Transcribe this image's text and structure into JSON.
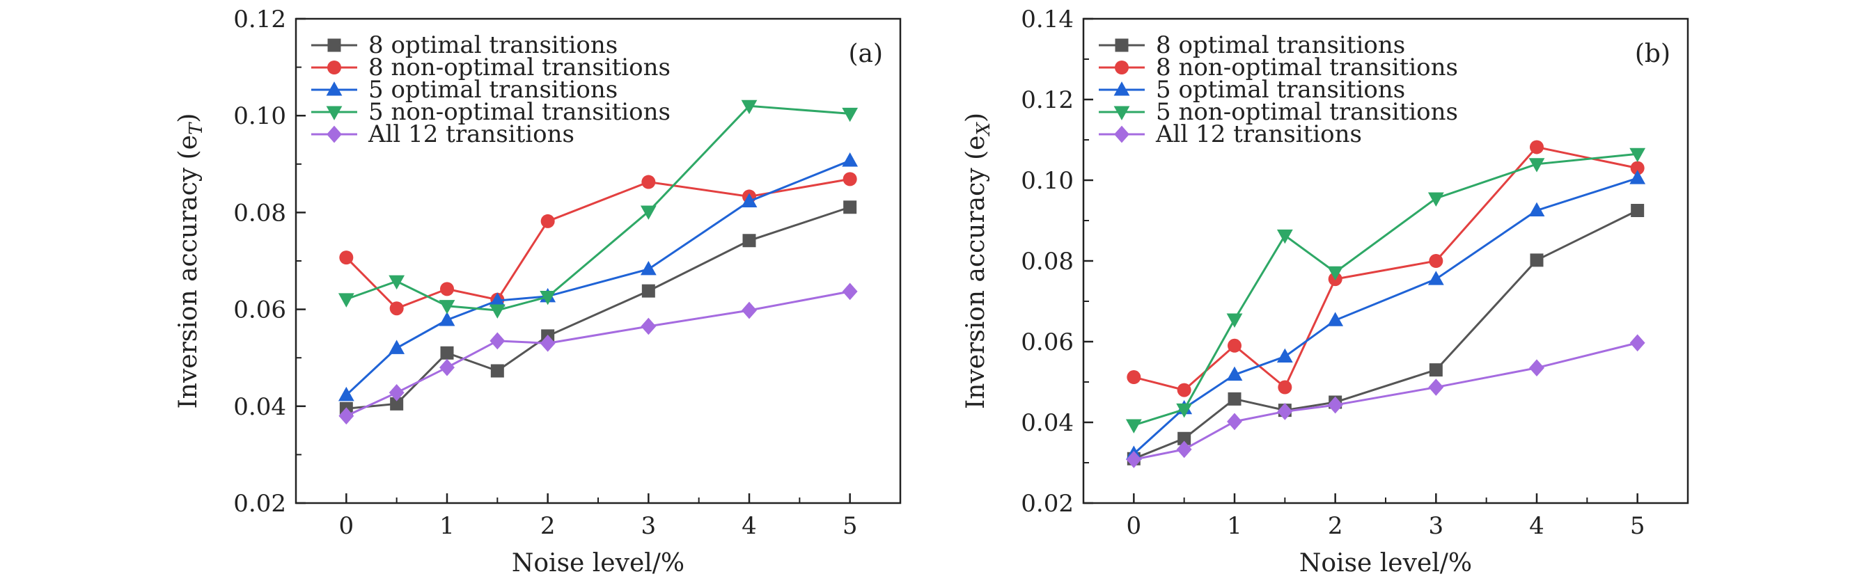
{
  "chart_data": [
    {
      "type": "line",
      "panel_label": "(a)",
      "xlabel": "Noise level/%",
      "ylabel": "Inversion accuracy (e",
      "ylabel_sub": "T",
      "ylabel_close": ")",
      "x": [
        0,
        0.5,
        1,
        1.5,
        2,
        3,
        4,
        5
      ],
      "x_tick_values": [
        0,
        1,
        2,
        3,
        4,
        5
      ],
      "x_tick_labels": [
        "0",
        "1",
        "2",
        "3",
        "4",
        "5"
      ],
      "y_tick_values": [
        0.02,
        0.04,
        0.06,
        0.08,
        0.1,
        0.12
      ],
      "y_tick_labels": [
        "0.02",
        "0.04",
        "0.06",
        "0.08",
        "0.10",
        "0.12"
      ],
      "ylim": [
        0.02,
        0.12
      ],
      "legend_position": "top-left",
      "series": [
        {
          "name": "8 optimal transitions",
          "color": "#555555",
          "marker": "square",
          "values": [
            0.0395,
            0.0405,
            0.051,
            0.0473,
            0.0545,
            0.0638,
            0.0742,
            0.0811
          ]
        },
        {
          "name": "8 non-optimal transitions",
          "color": "#e34040",
          "marker": "circle",
          "values": [
            0.0707,
            0.0602,
            0.0642,
            0.062,
            0.0782,
            0.0863,
            0.0833,
            0.0869
          ]
        },
        {
          "name": "5 optimal transitions",
          "color": "#1f63d6",
          "marker": "triangle-up",
          "values": [
            0.0423,
            0.052,
            0.0578,
            0.0618,
            0.0627,
            0.0683,
            0.0823,
            0.0907
          ]
        },
        {
          "name": "5 non-optimal transitions",
          "color": "#2ea866",
          "marker": "triangle-down",
          "values": [
            0.0621,
            0.0658,
            0.0607,
            0.0598,
            0.0626,
            0.0802,
            0.102,
            0.1004
          ]
        },
        {
          "name": "All 12 transitions",
          "color": "#a56be0",
          "marker": "diamond",
          "values": [
            0.038,
            0.0428,
            0.048,
            0.0535,
            0.053,
            0.0565,
            0.0598,
            0.0637
          ]
        }
      ]
    },
    {
      "type": "line",
      "panel_label": "(b)",
      "xlabel": "Noise level/%",
      "ylabel": "Inversion accuracy (e",
      "ylabel_sub": "X",
      "ylabel_close": ")",
      "x": [
        0,
        0.5,
        1,
        1.5,
        2,
        3,
        4,
        5
      ],
      "x_tick_values": [
        0,
        1,
        2,
        3,
        4,
        5
      ],
      "x_tick_labels": [
        "0",
        "1",
        "2",
        "3",
        "4",
        "5"
      ],
      "y_tick_values": [
        0.02,
        0.04,
        0.06,
        0.08,
        0.1,
        0.12,
        0.14
      ],
      "y_tick_labels": [
        "0.02",
        "0.04",
        "0.06",
        "0.08",
        "0.10",
        "0.12",
        "0.14"
      ],
      "ylim": [
        0.02,
        0.14
      ],
      "legend_position": "top-left",
      "series": [
        {
          "name": "8 optimal transitions",
          "color": "#555555",
          "marker": "square",
          "values": [
            0.031,
            0.036,
            0.0458,
            0.043,
            0.045,
            0.053,
            0.0802,
            0.0925
          ]
        },
        {
          "name": "8 non-optimal transitions",
          "color": "#e34040",
          "marker": "circle",
          "values": [
            0.0512,
            0.048,
            0.059,
            0.0487,
            0.0755,
            0.08,
            0.1082,
            0.103
          ]
        },
        {
          "name": "5 optimal transitions",
          "color": "#1f63d6",
          "marker": "triangle-up",
          "values": [
            0.0322,
            0.0435,
            0.0518,
            0.0563,
            0.0653,
            0.0755,
            0.0925,
            0.1005
          ]
        },
        {
          "name": "5 non-optimal transitions",
          "color": "#2ea866",
          "marker": "triangle-down",
          "values": [
            0.0393,
            0.0432,
            0.0655,
            0.0863,
            0.0772,
            0.0955,
            0.104,
            0.1065
          ]
        },
        {
          "name": "All 12 transitions",
          "color": "#a56be0",
          "marker": "diamond",
          "values": [
            0.0308,
            0.0333,
            0.0402,
            0.0427,
            0.0443,
            0.0487,
            0.0535,
            0.0597
          ]
        }
      ]
    }
  ]
}
